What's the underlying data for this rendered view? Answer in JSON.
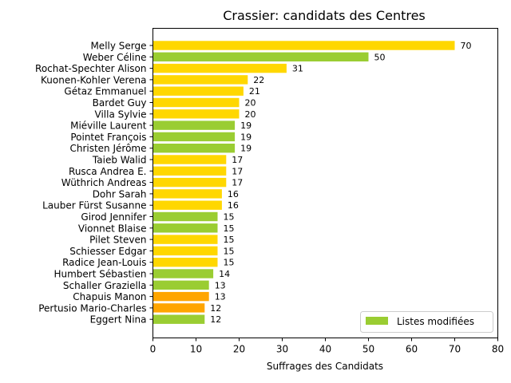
{
  "chart_data": {
    "type": "bar",
    "orientation": "horizontal",
    "title": "Crassier: candidats des Centres",
    "xlabel": "Suffrages des Candidats",
    "ylabel": "",
    "xlim": [
      0,
      80
    ],
    "xticks": [
      0,
      10,
      20,
      30,
      40,
      50,
      60,
      70,
      80
    ],
    "grid": false,
    "legend": {
      "placement": "bottom-right",
      "entries": [
        {
          "label": "Listes modifiées",
          "color": "#9acd32"
        }
      ]
    },
    "categories": [
      "Melly Serge",
      "Weber Céline",
      "Rochat-Spechter Alison",
      "Kuonen-Kohler Verena",
      "Gétaz Emmanuel",
      "Bardet Guy",
      "Villa Sylvie",
      "Miéville Laurent",
      "Pointet François",
      "Christen Jérôme",
      "Taieb Walid",
      "Rusca Andrea E.",
      "Wüthrich Andreas",
      "Dohr Sarah",
      "Lauber Fürst Susanne",
      "Girod Jennifer",
      "Vionnet Blaise",
      "Pilet Steven",
      "Schiesser Edgar",
      "Radice Jean-Louis",
      "Humbert Sébastien",
      "Schaller Graziella",
      "Chapuis Manon",
      "Pertusio Mario-Charles",
      "Eggert Nina"
    ],
    "values": [
      70,
      50,
      31,
      22,
      21,
      20,
      20,
      19,
      19,
      19,
      17,
      17,
      17,
      16,
      16,
      15,
      15,
      15,
      15,
      15,
      14,
      13,
      13,
      12,
      12
    ],
    "colors": [
      "#ffd700",
      "#9acd32",
      "#ffd700",
      "#ffd700",
      "#ffd700",
      "#ffd700",
      "#ffd700",
      "#9acd32",
      "#9acd32",
      "#9acd32",
      "#ffd700",
      "#ffd700",
      "#ffd700",
      "#ffd700",
      "#ffd700",
      "#9acd32",
      "#9acd32",
      "#ffd700",
      "#ffd700",
      "#ffd700",
      "#9acd32",
      "#9acd32",
      "#ffa500",
      "#ffa500",
      "#9acd32"
    ]
  }
}
